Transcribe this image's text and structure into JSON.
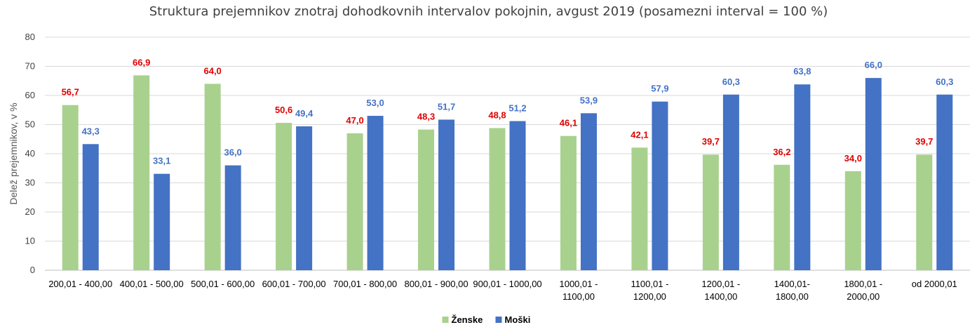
{
  "chart_data": {
    "type": "bar",
    "title": "Struktura prejemnikov znotraj dohodkovnih intervalov pokojnin, avgust 2019 (posamezni interval = 100 %)",
    "xlabel": "",
    "ylabel": "Delež prejemnikov, v %",
    "ylim": [
      0,
      80
    ],
    "yticks": [
      0,
      10,
      20,
      30,
      40,
      50,
      60,
      70,
      80
    ],
    "grid": true,
    "legend_position": "bottom",
    "categories": [
      [
        "200,01 - 400,00"
      ],
      [
        "400,01 -   500,00"
      ],
      [
        "500,01 - 600,00"
      ],
      [
        "600,01 - 700,00"
      ],
      [
        "700,01 - 800,00"
      ],
      [
        "800,01 - 900,00"
      ],
      [
        "900,01 - 1000,00"
      ],
      [
        "1000,01 -",
        "1100,00"
      ],
      [
        "1100,01 -",
        "1200,00"
      ],
      [
        "1200,01 -",
        "1400,00"
      ],
      [
        "1400,01-",
        "1800,00"
      ],
      [
        "1800,01 -",
        "2000,00"
      ],
      [
        "od 2000,01"
      ]
    ],
    "series": [
      {
        "name": "Ženske",
        "color": "#a9d18e",
        "label_color": "#e00000",
        "values": [
          56.7,
          66.9,
          64.0,
          50.6,
          47.0,
          48.3,
          48.8,
          46.1,
          42.1,
          39.7,
          36.2,
          34.0,
          39.7
        ],
        "labels": [
          "56,7",
          "66,9",
          "64,0",
          "50,6",
          "47,0",
          "48,3",
          "48,8",
          "46,1",
          "42,1",
          "39,7",
          "36,2",
          "34,0",
          "39,7"
        ]
      },
      {
        "name": "Moški",
        "color": "#4472c4",
        "label_color": "#4472c4",
        "values": [
          43.3,
          33.1,
          36.0,
          49.4,
          53.0,
          51.7,
          51.2,
          53.9,
          57.9,
          60.3,
          63.8,
          66.0,
          60.3
        ],
        "labels": [
          "43,3",
          "33,1",
          "36,0",
          "49,4",
          "53,0",
          "51,7",
          "51,2",
          "53,9",
          "57,9",
          "60,3",
          "63,8",
          "66,0",
          "60,3"
        ]
      }
    ],
    "grid_color": "#d9d9d9",
    "axis_color": "#bfbfbf"
  }
}
